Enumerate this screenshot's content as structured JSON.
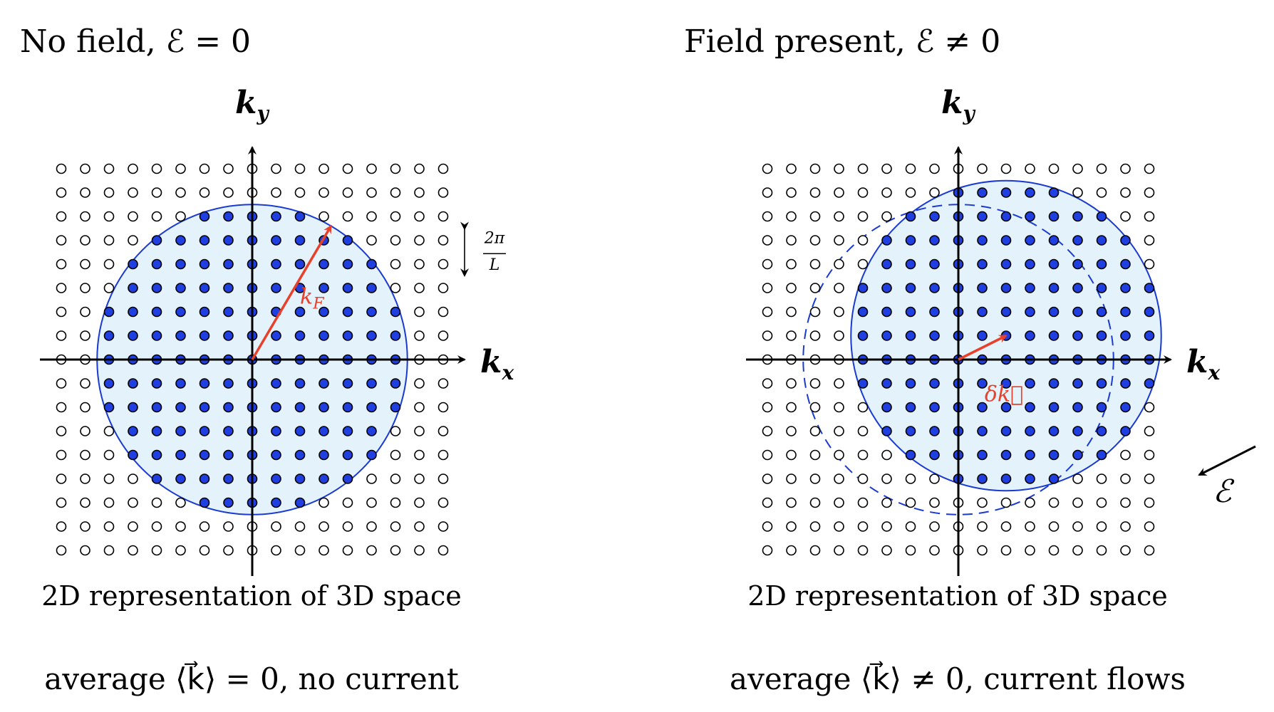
{
  "left_panel": {
    "title": "No field, ℰ = 0",
    "caption": "2D representation of 3D space",
    "bottom_text": "average ⟨k⃗⟩ = 0, no current",
    "kx_base": "k",
    "kx_sub": "x",
    "ky_base": "k",
    "ky_sub": "y",
    "vector_label_base": "k",
    "vector_label_sub": "F",
    "spacing_numerator": "2π",
    "spacing_denominator": "L"
  },
  "right_panel": {
    "title": "Field present, ℰ ≠ 0",
    "caption": "2D representation of 3D space",
    "bottom_text": "average ⟨k⃗⟩ ≠ 0, current flows",
    "kx_base": "k",
    "kx_sub": "x",
    "ky_base": "k",
    "ky_sub": "y",
    "vector_label": "δk⃗",
    "field_label": "ℰ"
  },
  "colors": {
    "filled_state": "#1f3fe0",
    "fermi_sphere_fill": "#e4f3fb",
    "fermi_sphere_edge": "#1a3ad0",
    "vector": "#e8402a",
    "empty_state": "#ffffff"
  },
  "lattice": {
    "states_per_axis": 17,
    "fermi_radius_in_lattice_units": 6.5,
    "field_free_shift": [
      0,
      0
    ],
    "field_shift": [
      2,
      1
    ]
  }
}
